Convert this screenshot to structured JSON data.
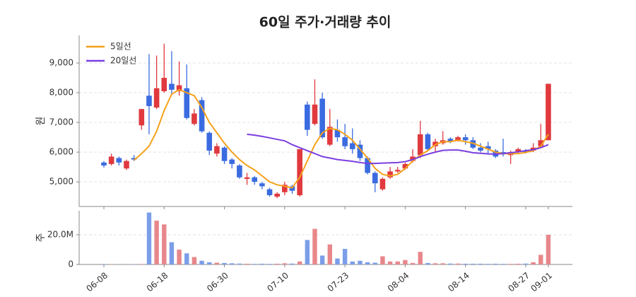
{
  "chart_data": [
    {
      "type": "candlestick",
      "title": "60일 주가·거래량 추이",
      "ylabel": "원",
      "open": [
        5650,
        5600,
        5800,
        5450,
        5800,
        6900,
        7900,
        7500,
        8050,
        8300,
        8050,
        8150,
        6950,
        7750,
        6650,
        5950,
        6150,
        5750,
        5550,
        5100,
        5150,
        4950,
        4750,
        4500,
        4650,
        4850,
        4550,
        7600,
        6950,
        7800,
        6250,
        6750,
        6500,
        6300,
        6250,
        5800,
        5300,
        4750,
        5150,
        5350,
        5450,
        5700,
        5900,
        6600,
        6200,
        6300,
        6450,
        6400,
        6500,
        6400,
        6150,
        6200,
        6050,
        6000,
        5900,
        6000,
        6050,
        6050,
        6200,
        6400
      ],
      "high": [
        5700,
        5950,
        5850,
        5750,
        5900,
        7450,
        9300,
        9250,
        9650,
        9400,
        9050,
        8950,
        7450,
        7850,
        6700,
        6300,
        6200,
        5800,
        5600,
        5300,
        5200,
        5000,
        4800,
        4650,
        5000,
        4900,
        6100,
        7700,
        8450,
        8000,
        7450,
        7100,
        6950,
        6800,
        6400,
        5850,
        5350,
        5150,
        5500,
        5500,
        5650,
        6100,
        7050,
        6650,
        6450,
        6700,
        6500,
        6550,
        6600,
        6500,
        6300,
        6350,
        6100,
        6450,
        6050,
        6150,
        6100,
        6300,
        6950,
        8300
      ],
      "low": [
        5480,
        5550,
        5550,
        5400,
        5700,
        6750,
        6600,
        7450,
        8000,
        7950,
        7900,
        7100,
        6900,
        6650,
        5900,
        5850,
        5600,
        5450,
        5100,
        4900,
        4900,
        4750,
        4500,
        4450,
        4550,
        4600,
        4500,
        6550,
        6900,
        6450,
        6200,
        6350,
        6100,
        5950,
        5700,
        5250,
        4650,
        4700,
        5100,
        5300,
        5400,
        5650,
        5800,
        6050,
        6000,
        6250,
        6300,
        6350,
        6250,
        6100,
        6000,
        5950,
        5800,
        5850,
        5600,
        5950,
        5950,
        6000,
        6150,
        6400
      ],
      "close": [
        5550,
        5850,
        5650,
        5700,
        5750,
        7450,
        7550,
        8150,
        8500,
        8100,
        8250,
        7150,
        7300,
        6700,
        6050,
        6200,
        5700,
        5600,
        5150,
        5150,
        5000,
        4850,
        4550,
        4600,
        4900,
        4700,
        6100,
        6750,
        7600,
        6500,
        6850,
        6500,
        6200,
        6100,
        5800,
        5300,
        4950,
        5100,
        5350,
        5400,
        5600,
        5850,
        6600,
        6100,
        6350,
        6400,
        6350,
        6500,
        6400,
        6150,
        6050,
        6100,
        5850,
        5950,
        6000,
        6100,
        6000,
        6150,
        6400,
        8300
      ],
      "up_color": "#e0393e",
      "down_color": "#3a6be0",
      "series": [
        {
          "name": "5일선",
          "color": "#f5a11b",
          "values": [
            null,
            null,
            null,
            null,
            5730,
            5950,
            6200,
            6700,
            7400,
            7950,
            8100,
            8000,
            7900,
            7500,
            7000,
            6650,
            6300,
            6000,
            5750,
            5550,
            5400,
            5200,
            5000,
            4900,
            4850,
            4800,
            5150,
            5700,
            6250,
            6650,
            6800,
            6750,
            6600,
            6400,
            6100,
            5800,
            5450,
            5250,
            5200,
            5250,
            5450,
            5700,
            5900,
            6050,
            6250,
            6350,
            6350,
            6400,
            6350,
            6300,
            6200,
            6100,
            6000,
            5950,
            5950,
            5950,
            5990,
            6050,
            6200,
            6600
          ]
        },
        {
          "name": "20일선",
          "color": "#7b3fe0",
          "values": [
            null,
            null,
            null,
            null,
            null,
            null,
            null,
            null,
            null,
            null,
            null,
            null,
            null,
            null,
            null,
            null,
            null,
            null,
            null,
            6600,
            6570,
            6530,
            6480,
            6430,
            6380,
            6250,
            6150,
            6050,
            5950,
            5850,
            5800,
            5750,
            5720,
            5690,
            5650,
            5620,
            5620,
            5630,
            5640,
            5650,
            5680,
            5750,
            5850,
            5930,
            6000,
            6060,
            6070,
            6070,
            6030,
            5980,
            5960,
            5940,
            5930,
            5950,
            5980,
            6010,
            6050,
            6080,
            6150,
            6250
          ]
        }
      ],
      "ylim": [
        4170,
        9930
      ],
      "yticks": [
        {
          "value": 5000,
          "label": "5,000"
        },
        {
          "value": 6000,
          "label": "6,000"
        },
        {
          "value": 7000,
          "label": "7,000"
        },
        {
          "value": 8000,
          "label": "8,000"
        },
        {
          "value": 9000,
          "label": "9,000"
        }
      ],
      "grid": true,
      "legend": "upper left"
    },
    {
      "type": "bar",
      "ylabel": "주",
      "categories": [
        "06-08",
        null,
        null,
        null,
        null,
        null,
        null,
        null,
        "06-18",
        null,
        null,
        null,
        null,
        null,
        null,
        null,
        "06-30",
        null,
        null,
        null,
        null,
        null,
        null,
        null,
        "07-10",
        null,
        null,
        null,
        null,
        null,
        null,
        null,
        "07-23",
        null,
        null,
        null,
        null,
        null,
        null,
        null,
        "08-04",
        null,
        null,
        null,
        null,
        null,
        null,
        null,
        "08-14",
        null,
        null,
        null,
        null,
        null,
        null,
        null,
        "08-27",
        null,
        null,
        "09-01"
      ],
      "values": [
        300000,
        200000,
        100000,
        100000,
        200000,
        300000,
        35000000,
        29500000,
        27000000,
        15000000,
        10000000,
        7500000,
        5000000,
        2500000,
        1500000,
        1200000,
        1000000,
        800000,
        600000,
        500000,
        400000,
        500000,
        400000,
        500000,
        800000,
        600000,
        2000000,
        16500000,
        24000000,
        6000000,
        13500000,
        4000000,
        10500000,
        2000000,
        2500000,
        1500000,
        1200000,
        5500000,
        2000000,
        2000000,
        3000000,
        1000000,
        8500000,
        1000000,
        800000,
        800000,
        600000,
        600000,
        500000,
        500000,
        500000,
        400000,
        500000,
        400000,
        400000,
        500000,
        600000,
        1500000,
        6500000,
        20000000
      ],
      "up_color": "#e8878b",
      "down_color": "#7c9ee9",
      "ylim": [
        0,
        36200000
      ],
      "yticks": [
        0,
        {
          "value": 20000000,
          "label": "20.0M"
        }
      ],
      "grid": true
    }
  ]
}
